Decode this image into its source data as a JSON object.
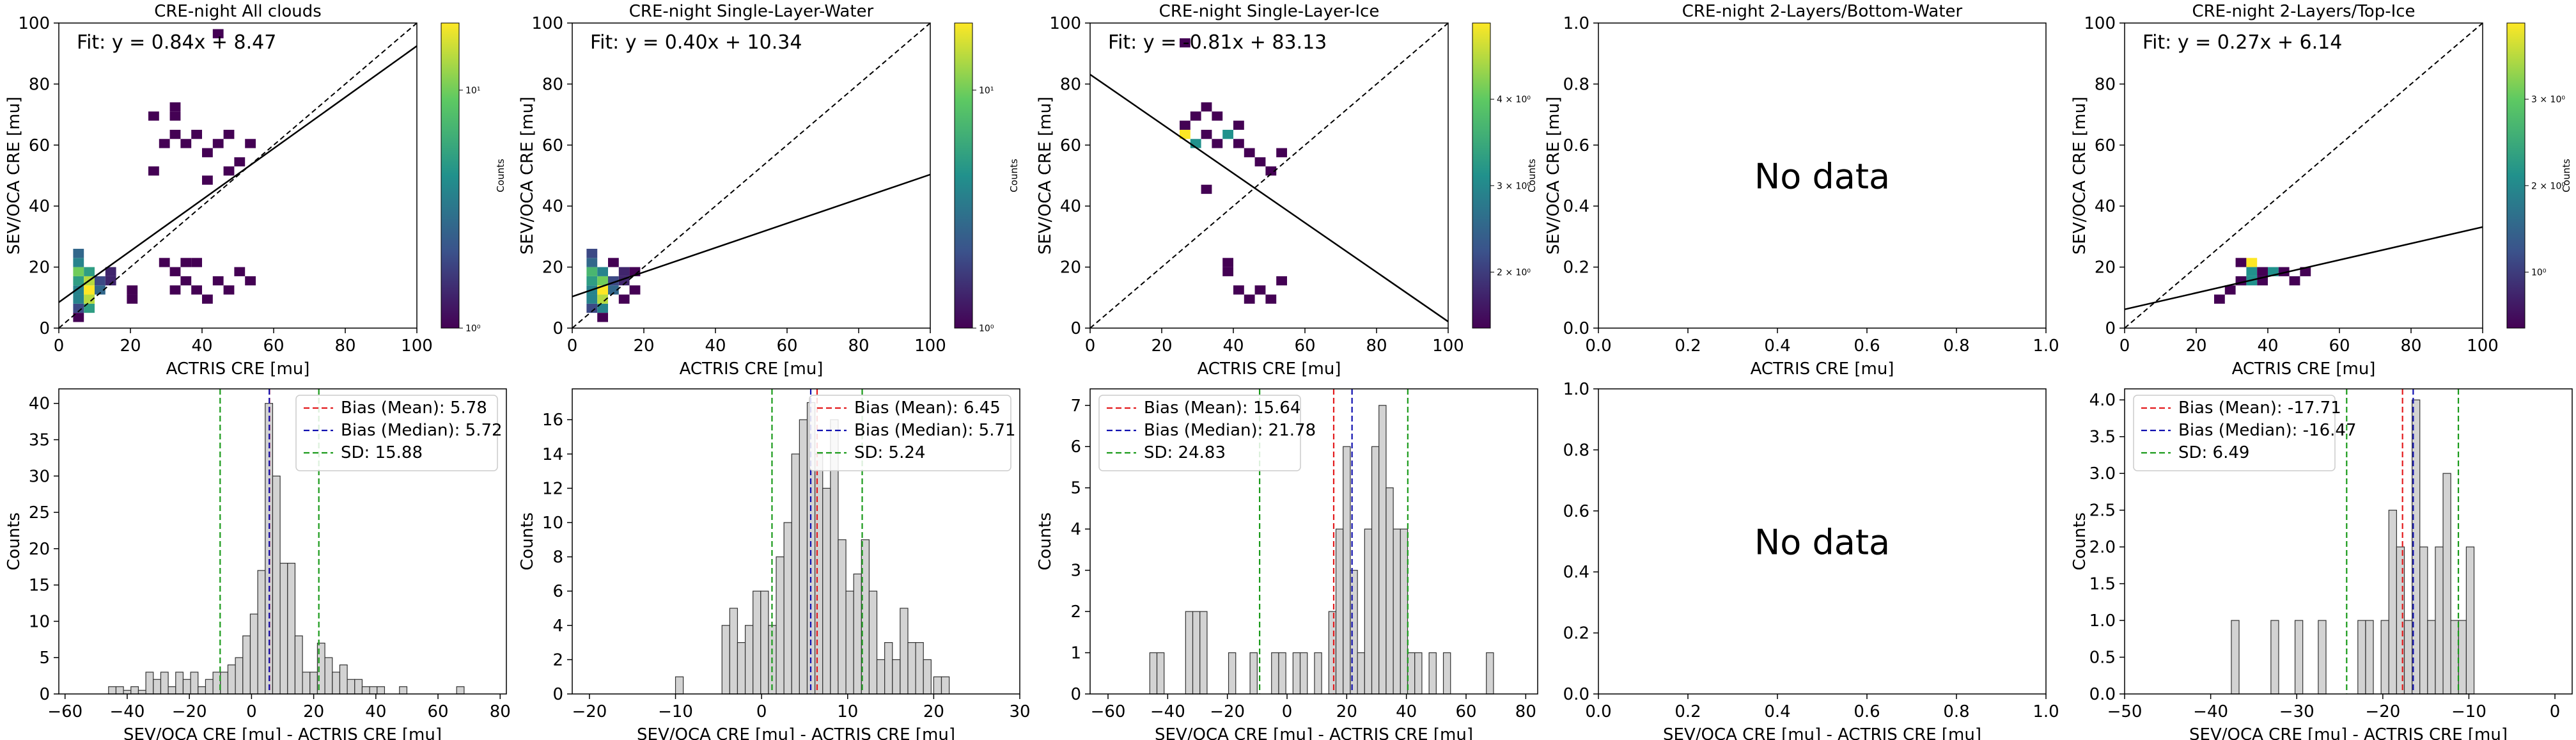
{
  "chart_data": [
    {
      "type": "heatmap",
      "title": "CRE-night All clouds",
      "xlabel": "ACTRIS CRE [mu]",
      "ylabel": "SEV/OCA CRE [mu]",
      "xlim": [
        0,
        100
      ],
      "ylim": [
        0,
        100
      ],
      "xticks": [
        "0",
        "20",
        "40",
        "60",
        "80",
        "100"
      ],
      "yticks": [
        "0",
        "20",
        "40",
        "60",
        "80",
        "100"
      ],
      "fit_text": "Fit: y = 0.84x + 8.47",
      "fit": {
        "slope": 0.84,
        "intercept": 8.47
      },
      "colorbar": {
        "label": "Counts",
        "ticks": [
          "10⁰",
          "10¹"
        ]
      },
      "bins": [
        [
          4,
          5,
          3
        ],
        [
          4,
          8,
          5
        ],
        [
          4,
          11,
          5
        ],
        [
          4,
          14,
          6
        ],
        [
          4,
          17,
          8
        ],
        [
          4,
          20,
          5
        ],
        [
          4,
          23,
          4
        ],
        [
          7,
          5,
          6
        ],
        [
          7,
          8,
          9
        ],
        [
          7,
          11,
          10
        ],
        [
          7,
          14,
          9
        ],
        [
          7,
          17,
          6
        ],
        [
          10,
          11,
          4
        ],
        [
          10,
          14,
          3
        ],
        [
          13,
          17,
          2
        ],
        [
          13,
          14,
          2
        ],
        [
          28,
          20,
          1
        ],
        [
          31,
          17,
          1
        ],
        [
          31,
          11,
          1
        ],
        [
          34,
          20,
          1
        ],
        [
          34,
          14,
          1
        ],
        [
          37,
          20,
          1
        ],
        [
          37,
          11,
          1
        ],
        [
          40,
          8,
          1
        ],
        [
          43,
          14,
          1
        ],
        [
          46,
          11,
          1
        ],
        [
          49,
          17,
          1
        ],
        [
          52,
          14,
          1
        ],
        [
          28,
          59,
          1
        ],
        [
          31,
          62,
          1
        ],
        [
          34,
          59,
          1
        ],
        [
          37,
          62,
          1
        ],
        [
          40,
          56,
          1
        ],
        [
          43,
          59,
          1
        ],
        [
          46,
          62,
          1
        ],
        [
          49,
          53,
          1
        ],
        [
          52,
          59,
          1
        ],
        [
          25,
          50,
          1
        ],
        [
          40,
          47,
          1
        ],
        [
          46,
          50,
          1
        ],
        [
          25,
          68,
          1
        ],
        [
          31,
          68,
          1
        ],
        [
          31,
          71,
          1
        ],
        [
          43,
          95,
          1
        ],
        [
          19,
          11,
          1
        ],
        [
          19,
          8,
          1
        ],
        [
          4,
          2,
          1
        ]
      ],
      "annotations": []
    },
    {
      "type": "heatmap",
      "title": "CRE-night Single-Layer-Water",
      "xlabel": "ACTRIS CRE [mu]",
      "ylabel": "SEV/OCA CRE [mu]",
      "xlim": [
        0,
        100
      ],
      "ylim": [
        0,
        100
      ],
      "xticks": [
        "0",
        "20",
        "40",
        "60",
        "80",
        "100"
      ],
      "yticks": [
        "0",
        "20",
        "40",
        "60",
        "80",
        "100"
      ],
      "fit_text": "Fit: y = 0.40x + 10.34",
      "fit": {
        "slope": 0.4,
        "intercept": 10.34
      },
      "colorbar": {
        "label": "Counts",
        "ticks": [
          "10⁰",
          "10¹"
        ]
      },
      "bins": [
        [
          4,
          5,
          3
        ],
        [
          4,
          8,
          5
        ],
        [
          4,
          11,
          5
        ],
        [
          4,
          14,
          6
        ],
        [
          4,
          17,
          7
        ],
        [
          4,
          20,
          4
        ],
        [
          4,
          23,
          3
        ],
        [
          7,
          5,
          5
        ],
        [
          7,
          8,
          9
        ],
        [
          7,
          11,
          10
        ],
        [
          7,
          14,
          8
        ],
        [
          7,
          17,
          5
        ],
        [
          10,
          11,
          4
        ],
        [
          10,
          14,
          3
        ],
        [
          13,
          17,
          2
        ],
        [
          13,
          14,
          2
        ],
        [
          13,
          8,
          1
        ],
        [
          10,
          20,
          1
        ],
        [
          16,
          17,
          1
        ],
        [
          16,
          11,
          1
        ],
        [
          7,
          2,
          1
        ]
      ],
      "annotations": []
    },
    {
      "type": "heatmap",
      "title": "CRE-night Single-Layer-Ice",
      "xlabel": "ACTRIS CRE [mu]",
      "ylabel": "SEV/OCA CRE [mu]",
      "xlim": [
        0,
        100
      ],
      "ylim": [
        0,
        100
      ],
      "xticks": [
        "0",
        "20",
        "40",
        "60",
        "80",
        "100"
      ],
      "yticks": [
        "0",
        "20",
        "40",
        "60",
        "80",
        "100"
      ],
      "fit_text": "Fit: y = -0.81x + 83.13",
      "fit": {
        "slope": -0.81,
        "intercept": 83.13
      },
      "colorbar": {
        "label": "Counts",
        "ticks": [
          "2 × 10⁰",
          "3 × 10⁰",
          "4 × 10⁰"
        ]
      },
      "bins": [
        [
          25,
          62,
          3
        ],
        [
          28,
          59,
          2
        ],
        [
          31,
          62,
          1
        ],
        [
          34,
          59,
          1
        ],
        [
          37,
          62,
          2
        ],
        [
          40,
          59,
          1
        ],
        [
          43,
          56,
          1
        ],
        [
          46,
          53,
          1
        ],
        [
          49,
          50,
          1
        ],
        [
          52,
          56,
          1
        ],
        [
          28,
          68,
          1
        ],
        [
          31,
          71,
          1
        ],
        [
          25,
          65,
          1
        ],
        [
          40,
          65,
          1
        ],
        [
          34,
          68,
          1
        ],
        [
          31,
          44,
          1
        ],
        [
          37,
          20,
          1
        ],
        [
          37,
          17,
          1
        ],
        [
          40,
          11,
          1
        ],
        [
          43,
          8,
          1
        ],
        [
          46,
          11,
          1
        ],
        [
          49,
          8,
          1
        ],
        [
          52,
          14,
          1
        ],
        [
          25,
          92,
          1
        ]
      ],
      "annotations": []
    },
    {
      "type": "heatmap",
      "title": "CRE-night 2-Layers/Bottom-Water",
      "xlabel": "ACTRIS CRE [mu]",
      "ylabel": "SEV/OCA CRE [mu]",
      "xlim": [
        0,
        1
      ],
      "ylim": [
        0,
        1
      ],
      "xticks": [
        "0.0",
        "0.2",
        "0.4",
        "0.6",
        "0.8",
        "1.0"
      ],
      "yticks": [
        "0.0",
        "0.2",
        "0.4",
        "0.6",
        "0.8",
        "1.0"
      ],
      "fit_text": "",
      "bins": [],
      "annotations": [
        "No data"
      ]
    },
    {
      "type": "heatmap",
      "title": "CRE-night 2-Layers/Top-Ice",
      "xlabel": "ACTRIS CRE [mu]",
      "ylabel": "SEV/OCA CRE [mu]",
      "xlim": [
        0,
        100
      ],
      "ylim": [
        0,
        100
      ],
      "xticks": [
        "0",
        "20",
        "40",
        "60",
        "80",
        "100"
      ],
      "yticks": [
        "0",
        "20",
        "40",
        "60",
        "80",
        "100"
      ],
      "fit_text": "Fit: y = 0.27x + 6.14",
      "fit": {
        "slope": 0.27,
        "intercept": 6.14
      },
      "colorbar": {
        "label": "Counts",
        "ticks": [
          "10⁰",
          "2 × 10⁰",
          "3 × 10⁰"
        ]
      },
      "bins": [
        [
          31,
          20,
          1
        ],
        [
          34,
          20,
          3
        ],
        [
          34,
          17,
          2
        ],
        [
          37,
          17,
          1
        ],
        [
          37,
          14,
          1
        ],
        [
          40,
          17,
          2
        ],
        [
          43,
          17,
          1
        ],
        [
          46,
          14,
          1
        ],
        [
          49,
          17,
          1
        ],
        [
          31,
          14,
          1
        ],
        [
          28,
          11,
          1
        ],
        [
          25,
          8,
          1
        ],
        [
          34,
          14,
          2
        ]
      ],
      "annotations": []
    },
    {
      "type": "bar",
      "title": "",
      "xlabel": "SEV/OCA CRE [mu] - ACTRIS CRE [mu]",
      "ylabel": "Counts",
      "xlim": [
        -62,
        82
      ],
      "ylim": [
        0,
        42
      ],
      "xticks": [
        "−60",
        "−40",
        "−20",
        "0",
        "20",
        "40",
        "60",
        "80"
      ],
      "yticks": [
        "0",
        "5",
        "10",
        "15",
        "20",
        "25",
        "30",
        "35",
        "40"
      ],
      "bin_width": 2.4,
      "bins": [
        [
          -46,
          1
        ],
        [
          -43.6,
          1
        ],
        [
          -41.2,
          0.5
        ],
        [
          -38.8,
          1
        ],
        [
          -36.4,
          0.5
        ],
        [
          -34,
          3
        ],
        [
          -31.6,
          2
        ],
        [
          -29.2,
          3
        ],
        [
          -26.8,
          1
        ],
        [
          -24.4,
          3
        ],
        [
          -22,
          2
        ],
        [
          -19.6,
          3
        ],
        [
          -17.2,
          1
        ],
        [
          -14.8,
          2
        ],
        [
          -12.4,
          3
        ],
        [
          -10,
          3
        ],
        [
          -7.6,
          4
        ],
        [
          -5.2,
          5
        ],
        [
          -2.8,
          8
        ],
        [
          -0.4,
          11
        ],
        [
          2,
          17
        ],
        [
          4.4,
          40
        ],
        [
          6.8,
          30
        ],
        [
          9.2,
          18
        ],
        [
          11.6,
          18
        ],
        [
          14,
          8
        ],
        [
          16.4,
          3
        ],
        [
          18.8,
          3
        ],
        [
          21.2,
          7
        ],
        [
          23.6,
          5
        ],
        [
          26,
          3
        ],
        [
          28.4,
          4
        ],
        [
          30.8,
          2
        ],
        [
          33.2,
          2
        ],
        [
          35.6,
          1
        ],
        [
          38,
          1
        ],
        [
          40.4,
          1
        ],
        [
          47.6,
          1
        ],
        [
          66,
          1
        ]
      ],
      "vlines": {
        "mean": 5.78,
        "median": 5.72,
        "sd_low": -10.1,
        "sd_high": 21.66
      },
      "legend": [
        "Bias (Mean): 5.78",
        "Bias (Median): 5.72",
        "SD: 15.88"
      ],
      "legend_position": "top-right",
      "annotations": []
    },
    {
      "type": "bar",
      "title": "",
      "xlabel": "SEV/OCA CRE [mu] - ACTRIS CRE [mu]",
      "ylabel": "Counts",
      "xlim": [
        -22,
        30
      ],
      "ylim": [
        0,
        17.8
      ],
      "xticks": [
        "−20",
        "−10",
        "0",
        "10",
        "20",
        "30"
      ],
      "yticks": [
        "0",
        "2",
        "4",
        "6",
        "8",
        "10",
        "12",
        "14",
        "16"
      ],
      "bin_width": 0.9,
      "bins": [
        [
          -10,
          1
        ],
        [
          -4.6,
          4
        ],
        [
          -3.7,
          5
        ],
        [
          -2.8,
          3
        ],
        [
          -1.9,
          4
        ],
        [
          -1,
          6
        ],
        [
          -0.1,
          6
        ],
        [
          0.8,
          4
        ],
        [
          1.7,
          8
        ],
        [
          2.6,
          10
        ],
        [
          3.5,
          14
        ],
        [
          4.4,
          16
        ],
        [
          5.3,
          17
        ],
        [
          6.2,
          14
        ],
        [
          7.1,
          12
        ],
        [
          8,
          16
        ],
        [
          8.9,
          9
        ],
        [
          9.8,
          6
        ],
        [
          10.7,
          7
        ],
        [
          11.6,
          9
        ],
        [
          12.5,
          6
        ],
        [
          13.4,
          2
        ],
        [
          14.3,
          3
        ],
        [
          15.2,
          2
        ],
        [
          16.1,
          5
        ],
        [
          17,
          3
        ],
        [
          17.9,
          3
        ],
        [
          18.8,
          2
        ],
        [
          20,
          1
        ],
        [
          20.9,
          1
        ]
      ],
      "vlines": {
        "mean": 6.45,
        "median": 5.71,
        "sd_low": 1.21,
        "sd_high": 11.69
      },
      "legend": [
        "Bias (Mean): 6.45",
        "Bias (Median): 5.71",
        "SD: 5.24"
      ],
      "legend_position": "top-right",
      "annotations": []
    },
    {
      "type": "bar",
      "title": "",
      "xlabel": "SEV/OCA CRE [mu] - ACTRIS CRE [mu]",
      "ylabel": "Counts",
      "xlim": [
        -66,
        84
      ],
      "ylim": [
        0,
        7.4
      ],
      "xticks": [
        "−60",
        "−40",
        "−20",
        "0",
        "20",
        "40",
        "60",
        "80"
      ],
      "yticks": [
        "0",
        "1",
        "2",
        "3",
        "4",
        "5",
        "6",
        "7"
      ],
      "bin_width": 2.4,
      "bins": [
        [
          -46,
          1
        ],
        [
          -43.6,
          1
        ],
        [
          -34,
          2
        ],
        [
          -31.6,
          2
        ],
        [
          -29.2,
          2
        ],
        [
          -19.6,
          1
        ],
        [
          -12.4,
          1
        ],
        [
          -5.2,
          1
        ],
        [
          -2.8,
          1
        ],
        [
          2,
          1
        ],
        [
          4.4,
          1
        ],
        [
          9.2,
          1
        ],
        [
          14,
          2
        ],
        [
          16.4,
          4
        ],
        [
          18.8,
          6
        ],
        [
          21.2,
          3
        ],
        [
          23.6,
          1
        ],
        [
          26,
          4
        ],
        [
          28.4,
          6
        ],
        [
          30.8,
          7
        ],
        [
          33.2,
          5
        ],
        [
          35.6,
          4
        ],
        [
          38,
          4
        ],
        [
          40.4,
          1
        ],
        [
          42.8,
          1
        ],
        [
          47.6,
          1
        ],
        [
          52.4,
          1
        ],
        [
          66.8,
          1
        ]
      ],
      "vlines": {
        "mean": 15.64,
        "median": 21.78,
        "sd_low": -9.19,
        "sd_high": 40.47
      },
      "legend": [
        "Bias (Mean): 15.64",
        "Bias (Median): 21.78",
        "SD: 24.83"
      ],
      "legend_position": "top-left",
      "annotations": []
    },
    {
      "type": "bar",
      "title": "",
      "xlabel": "SEV/OCA CRE [mu] - ACTRIS CRE [mu]",
      "ylabel": "",
      "xlim": [
        0,
        1
      ],
      "ylim": [
        0,
        1
      ],
      "xticks": [
        "0.0",
        "0.2",
        "0.4",
        "0.6",
        "0.8",
        "1.0"
      ],
      "yticks": [
        "0.0",
        "0.2",
        "0.4",
        "0.6",
        "0.8",
        "1.0"
      ],
      "bins": [],
      "legend": [],
      "annotations": [
        "No data"
      ]
    },
    {
      "type": "bar",
      "title": "",
      "xlabel": "SEV/OCA CRE [mu] - ACTRIS CRE [mu]",
      "ylabel": "Counts",
      "xlim": [
        -50,
        2
      ],
      "ylim": [
        0,
        4.15
      ],
      "xticks": [
        "−50",
        "−40",
        "−30",
        "−20",
        "−10",
        "0"
      ],
      "yticks": [
        "0.0",
        "0.5",
        "1.0",
        "1.5",
        "2.0",
        "2.5",
        "3.0",
        "3.5",
        "4.0"
      ],
      "bin_width": 0.9,
      "bins": [
        [
          -37.6,
          1
        ],
        [
          -33,
          1
        ],
        [
          -30.2,
          1
        ],
        [
          -27.5,
          1
        ],
        [
          -22.9,
          1
        ],
        [
          -22,
          1
        ],
        [
          -20.2,
          1
        ],
        [
          -19.3,
          2.5
        ],
        [
          -18.4,
          2
        ],
        [
          -17.5,
          1
        ],
        [
          -16.6,
          4
        ],
        [
          -15.7,
          2
        ],
        [
          -14.8,
          1
        ],
        [
          -13.9,
          2
        ],
        [
          -13,
          3
        ],
        [
          -12.1,
          1
        ],
        [
          -11.2,
          1
        ],
        [
          -10.3,
          2
        ]
      ],
      "vlines": {
        "mean": -17.71,
        "median": -16.47,
        "sd_low": -24.2,
        "sd_high": -11.22
      },
      "legend": [
        "Bias (Mean): -17.71",
        "Bias (Median): -16.47",
        "SD: 6.49"
      ],
      "legend_position": "top-left",
      "annotations": []
    }
  ]
}
